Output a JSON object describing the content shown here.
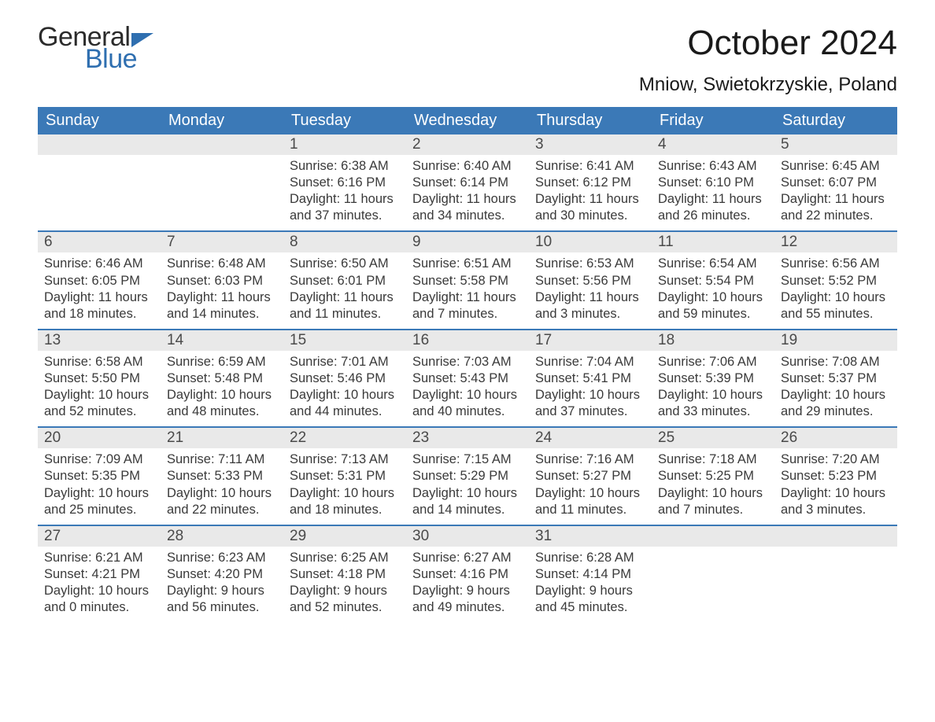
{
  "brand": {
    "word1": "General",
    "word2": "Blue"
  },
  "title": "October 2024",
  "location": "Mniow, Swietokrzyskie, Poland",
  "colors": {
    "header_bg": "#3b79b7",
    "header_text": "#ffffff",
    "daynum_bg": "#e9e9e9",
    "row_border": "#3b79b7",
    "brand_blue": "#2f6fb0",
    "body_text": "#3a3a3a",
    "background": "#ffffff"
  },
  "typography": {
    "title_fontsize": 44,
    "location_fontsize": 24,
    "dow_fontsize": 20,
    "daynum_fontsize": 19,
    "body_fontsize": 16.5
  },
  "dow": [
    "Sunday",
    "Monday",
    "Tuesday",
    "Wednesday",
    "Thursday",
    "Friday",
    "Saturday"
  ],
  "weeks": [
    [
      {
        "n": "",
        "sr": "",
        "ss": "",
        "dl1": "",
        "dl2": ""
      },
      {
        "n": "",
        "sr": "",
        "ss": "",
        "dl1": "",
        "dl2": ""
      },
      {
        "n": "1",
        "sr": "Sunrise: 6:38 AM",
        "ss": "Sunset: 6:16 PM",
        "dl1": "Daylight: 11 hours",
        "dl2": "and 37 minutes."
      },
      {
        "n": "2",
        "sr": "Sunrise: 6:40 AM",
        "ss": "Sunset: 6:14 PM",
        "dl1": "Daylight: 11 hours",
        "dl2": "and 34 minutes."
      },
      {
        "n": "3",
        "sr": "Sunrise: 6:41 AM",
        "ss": "Sunset: 6:12 PM",
        "dl1": "Daylight: 11 hours",
        "dl2": "and 30 minutes."
      },
      {
        "n": "4",
        "sr": "Sunrise: 6:43 AM",
        "ss": "Sunset: 6:10 PM",
        "dl1": "Daylight: 11 hours",
        "dl2": "and 26 minutes."
      },
      {
        "n": "5",
        "sr": "Sunrise: 6:45 AM",
        "ss": "Sunset: 6:07 PM",
        "dl1": "Daylight: 11 hours",
        "dl2": "and 22 minutes."
      }
    ],
    [
      {
        "n": "6",
        "sr": "Sunrise: 6:46 AM",
        "ss": "Sunset: 6:05 PM",
        "dl1": "Daylight: 11 hours",
        "dl2": "and 18 minutes."
      },
      {
        "n": "7",
        "sr": "Sunrise: 6:48 AM",
        "ss": "Sunset: 6:03 PM",
        "dl1": "Daylight: 11 hours",
        "dl2": "and 14 minutes."
      },
      {
        "n": "8",
        "sr": "Sunrise: 6:50 AM",
        "ss": "Sunset: 6:01 PM",
        "dl1": "Daylight: 11 hours",
        "dl2": "and 11 minutes."
      },
      {
        "n": "9",
        "sr": "Sunrise: 6:51 AM",
        "ss": "Sunset: 5:58 PM",
        "dl1": "Daylight: 11 hours",
        "dl2": "and 7 minutes."
      },
      {
        "n": "10",
        "sr": "Sunrise: 6:53 AM",
        "ss": "Sunset: 5:56 PM",
        "dl1": "Daylight: 11 hours",
        "dl2": "and 3 minutes."
      },
      {
        "n": "11",
        "sr": "Sunrise: 6:54 AM",
        "ss": "Sunset: 5:54 PM",
        "dl1": "Daylight: 10 hours",
        "dl2": "and 59 minutes."
      },
      {
        "n": "12",
        "sr": "Sunrise: 6:56 AM",
        "ss": "Sunset: 5:52 PM",
        "dl1": "Daylight: 10 hours",
        "dl2": "and 55 minutes."
      }
    ],
    [
      {
        "n": "13",
        "sr": "Sunrise: 6:58 AM",
        "ss": "Sunset: 5:50 PM",
        "dl1": "Daylight: 10 hours",
        "dl2": "and 52 minutes."
      },
      {
        "n": "14",
        "sr": "Sunrise: 6:59 AM",
        "ss": "Sunset: 5:48 PM",
        "dl1": "Daylight: 10 hours",
        "dl2": "and 48 minutes."
      },
      {
        "n": "15",
        "sr": "Sunrise: 7:01 AM",
        "ss": "Sunset: 5:46 PM",
        "dl1": "Daylight: 10 hours",
        "dl2": "and 44 minutes."
      },
      {
        "n": "16",
        "sr": "Sunrise: 7:03 AM",
        "ss": "Sunset: 5:43 PM",
        "dl1": "Daylight: 10 hours",
        "dl2": "and 40 minutes."
      },
      {
        "n": "17",
        "sr": "Sunrise: 7:04 AM",
        "ss": "Sunset: 5:41 PM",
        "dl1": "Daylight: 10 hours",
        "dl2": "and 37 minutes."
      },
      {
        "n": "18",
        "sr": "Sunrise: 7:06 AM",
        "ss": "Sunset: 5:39 PM",
        "dl1": "Daylight: 10 hours",
        "dl2": "and 33 minutes."
      },
      {
        "n": "19",
        "sr": "Sunrise: 7:08 AM",
        "ss": "Sunset: 5:37 PM",
        "dl1": "Daylight: 10 hours",
        "dl2": "and 29 minutes."
      }
    ],
    [
      {
        "n": "20",
        "sr": "Sunrise: 7:09 AM",
        "ss": "Sunset: 5:35 PM",
        "dl1": "Daylight: 10 hours",
        "dl2": "and 25 minutes."
      },
      {
        "n": "21",
        "sr": "Sunrise: 7:11 AM",
        "ss": "Sunset: 5:33 PM",
        "dl1": "Daylight: 10 hours",
        "dl2": "and 22 minutes."
      },
      {
        "n": "22",
        "sr": "Sunrise: 7:13 AM",
        "ss": "Sunset: 5:31 PM",
        "dl1": "Daylight: 10 hours",
        "dl2": "and 18 minutes."
      },
      {
        "n": "23",
        "sr": "Sunrise: 7:15 AM",
        "ss": "Sunset: 5:29 PM",
        "dl1": "Daylight: 10 hours",
        "dl2": "and 14 minutes."
      },
      {
        "n": "24",
        "sr": "Sunrise: 7:16 AM",
        "ss": "Sunset: 5:27 PM",
        "dl1": "Daylight: 10 hours",
        "dl2": "and 11 minutes."
      },
      {
        "n": "25",
        "sr": "Sunrise: 7:18 AM",
        "ss": "Sunset: 5:25 PM",
        "dl1": "Daylight: 10 hours",
        "dl2": "and 7 minutes."
      },
      {
        "n": "26",
        "sr": "Sunrise: 7:20 AM",
        "ss": "Sunset: 5:23 PM",
        "dl1": "Daylight: 10 hours",
        "dl2": "and 3 minutes."
      }
    ],
    [
      {
        "n": "27",
        "sr": "Sunrise: 6:21 AM",
        "ss": "Sunset: 4:21 PM",
        "dl1": "Daylight: 10 hours",
        "dl2": "and 0 minutes."
      },
      {
        "n": "28",
        "sr": "Sunrise: 6:23 AM",
        "ss": "Sunset: 4:20 PM",
        "dl1": "Daylight: 9 hours",
        "dl2": "and 56 minutes."
      },
      {
        "n": "29",
        "sr": "Sunrise: 6:25 AM",
        "ss": "Sunset: 4:18 PM",
        "dl1": "Daylight: 9 hours",
        "dl2": "and 52 minutes."
      },
      {
        "n": "30",
        "sr": "Sunrise: 6:27 AM",
        "ss": "Sunset: 4:16 PM",
        "dl1": "Daylight: 9 hours",
        "dl2": "and 49 minutes."
      },
      {
        "n": "31",
        "sr": "Sunrise: 6:28 AM",
        "ss": "Sunset: 4:14 PM",
        "dl1": "Daylight: 9 hours",
        "dl2": "and 45 minutes."
      },
      {
        "n": "",
        "sr": "",
        "ss": "",
        "dl1": "",
        "dl2": ""
      },
      {
        "n": "",
        "sr": "",
        "ss": "",
        "dl1": "",
        "dl2": ""
      }
    ]
  ]
}
